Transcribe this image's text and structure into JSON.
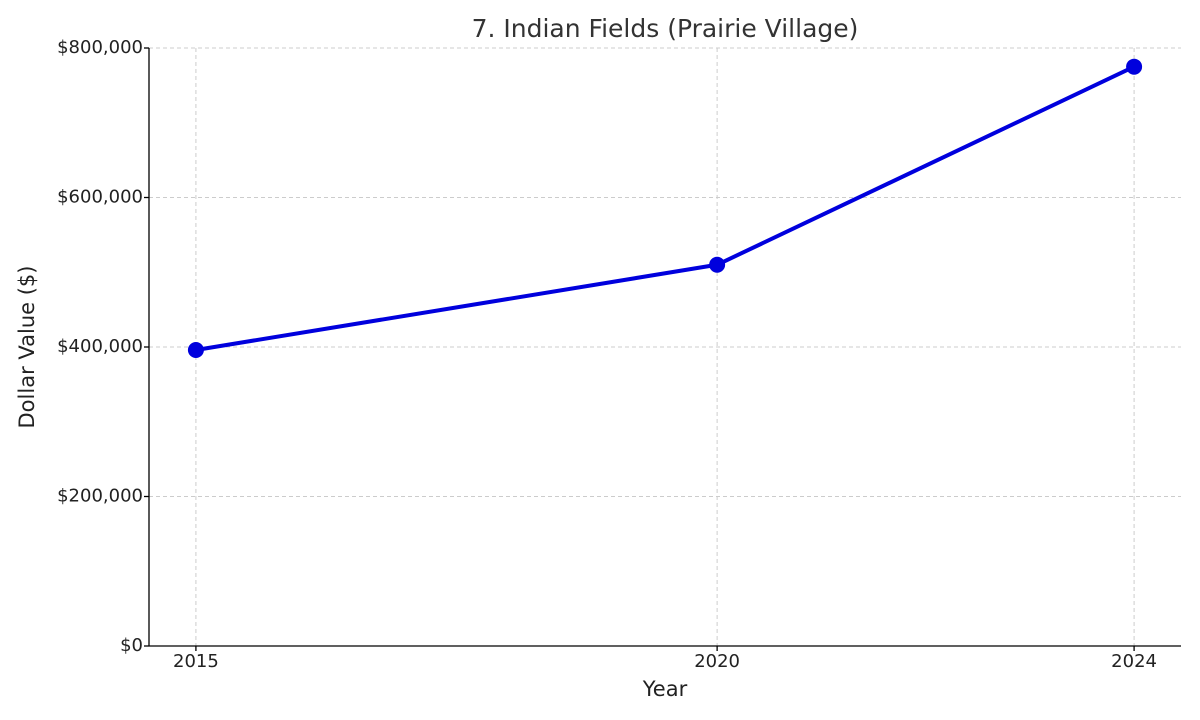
{
  "chart_data": {
    "type": "line",
    "title": "7. Indian Fields (Prairie Village)",
    "x_label": "Year",
    "y_label": "Dollar Value ($)",
    "x": [
      2015,
      2020,
      2024
    ],
    "series": [
      {
        "name": "Indian Fields",
        "color": "#0000dd",
        "values": [
          396000,
          510000,
          775000
        ]
      }
    ],
    "xlim": [
      2014.55,
      2024.45
    ],
    "xticks": [
      2015,
      2020,
      2024
    ],
    "ylim": [
      0,
      800000
    ],
    "yticks": [
      {
        "value": 0,
        "label": "$0"
      },
      {
        "value": 200000,
        "label": "$200,000"
      },
      {
        "value": 400000,
        "label": "$400,000"
      },
      {
        "value": 600000,
        "label": "$600,000"
      },
      {
        "value": 800000,
        "label": "$800,000"
      }
    ],
    "grid": true
  }
}
